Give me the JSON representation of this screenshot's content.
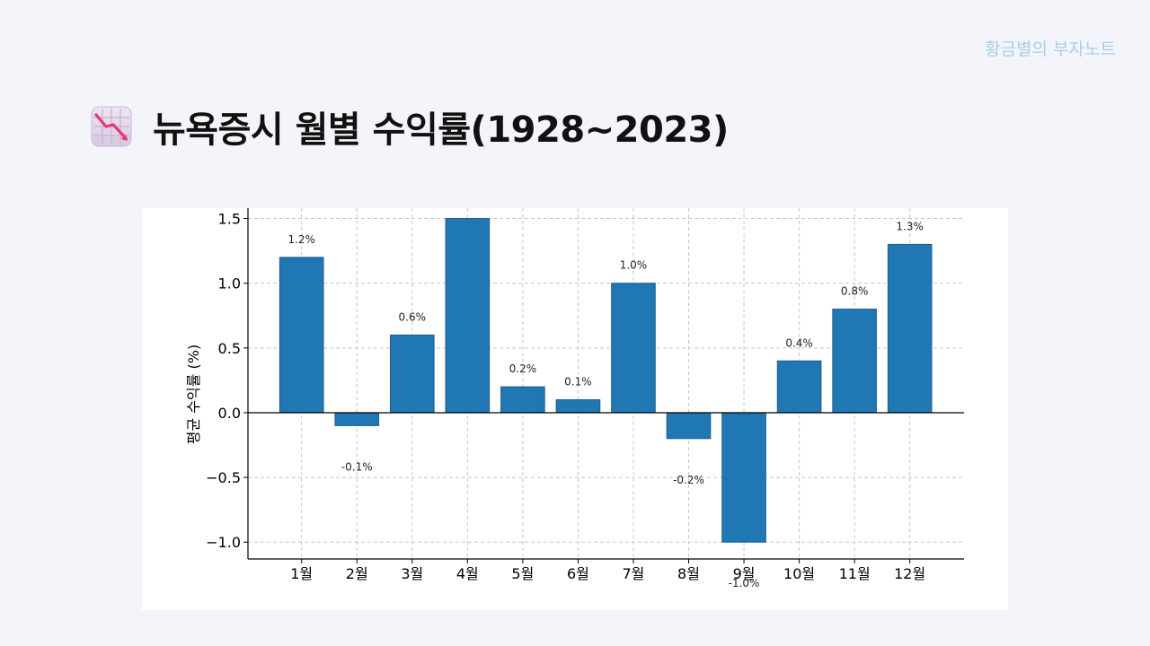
{
  "brand": "황금별의 부자노트",
  "title": "뉴욕증시 월별 수익률(1928~2023)",
  "icon": "chart-decreasing-icon",
  "colors": {
    "bar": "#1f77b4",
    "background": "#f4f5fa",
    "brand_text": "#a6cfe8"
  },
  "chart_data": {
    "type": "bar",
    "categories": [
      "1월",
      "2월",
      "3월",
      "4월",
      "5월",
      "6월",
      "7월",
      "8월",
      "9월",
      "10월",
      "11월",
      "12월"
    ],
    "values": [
      1.2,
      -0.1,
      0.6,
      1.5,
      0.2,
      0.1,
      1.0,
      -0.2,
      -1.0,
      0.4,
      0.8,
      1.3
    ],
    "data_labels": [
      "1.2%",
      "-0.1%",
      "0.6%",
      "",
      "0.2%",
      "0.1%",
      "1.0%",
      "-0.2%",
      "-1.0%",
      "0.4%",
      "0.8%",
      "1.3%"
    ],
    "ylabel": "평균 수익률 (%)",
    "xlabel": "",
    "ylim": [
      -1.13,
      1.58
    ],
    "yticks": [
      -1.0,
      -0.5,
      0.0,
      0.5,
      1.0,
      1.5
    ],
    "ytick_labels": [
      "−1.0",
      "−0.5",
      "0.0",
      "0.5",
      "1.0",
      "1.5"
    ],
    "grid": true,
    "legend": "none"
  }
}
